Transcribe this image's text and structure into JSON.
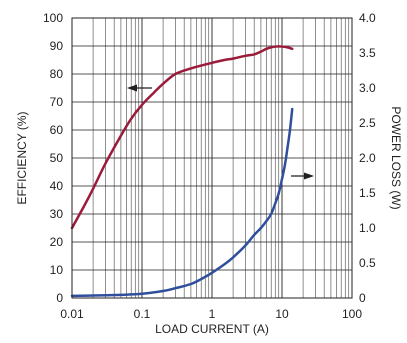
{
  "chart_data": {
    "type": "line",
    "title": "",
    "xlabel": "LOAD CURRENT (A)",
    "ylabel": "EFFICIENCY (%)",
    "y2label": "POWER LOSS (W)",
    "x_scale": "log",
    "xlim": [
      0.01,
      100
    ],
    "ylim": [
      0,
      100
    ],
    "y2lim": [
      0,
      4.0
    ],
    "grid": true,
    "x_ticks": [
      "0.01",
      "0.1",
      "1",
      "10",
      "100"
    ],
    "y_ticks": [
      "0",
      "10",
      "20",
      "30",
      "40",
      "50",
      "60",
      "70",
      "80",
      "90",
      "100"
    ],
    "y2_ticks": [
      "0",
      "0.5",
      "1.0",
      "1.5",
      "2.0",
      "2.5",
      "3.0",
      "3.5",
      "4.0"
    ],
    "series": [
      {
        "axis": "left",
        "color": "#9b1b3a",
        "arrow": "left",
        "x": [
          0.01,
          0.015,
          0.02,
          0.03,
          0.05,
          0.07,
          0.1,
          0.15,
          0.2,
          0.3,
          0.5,
          0.7,
          1,
          1.5,
          2,
          3,
          4,
          5,
          6,
          7,
          8,
          10,
          12,
          14
        ],
        "y": [
          25,
          33,
          39,
          48,
          58,
          64,
          69,
          73.5,
          76.5,
          80,
          82,
          83,
          84,
          85,
          85.5,
          86.5,
          87,
          88,
          89,
          89.5,
          89.8,
          89.8,
          89.5,
          89
        ]
      },
      {
        "axis": "right",
        "color": "#2f4f9c",
        "arrow": "right",
        "x": [
          0.01,
          0.02,
          0.05,
          0.1,
          0.2,
          0.3,
          0.5,
          0.7,
          1,
          1.5,
          2,
          3,
          4,
          5,
          6,
          7,
          8,
          9,
          10,
          11,
          12,
          13,
          14
        ],
        "y": [
          0.03,
          0.035,
          0.045,
          0.06,
          0.1,
          0.14,
          0.2,
          0.27,
          0.36,
          0.48,
          0.58,
          0.75,
          0.9,
          1.0,
          1.1,
          1.2,
          1.35,
          1.5,
          1.7,
          1.9,
          2.15,
          2.4,
          2.7
        ]
      }
    ]
  }
}
